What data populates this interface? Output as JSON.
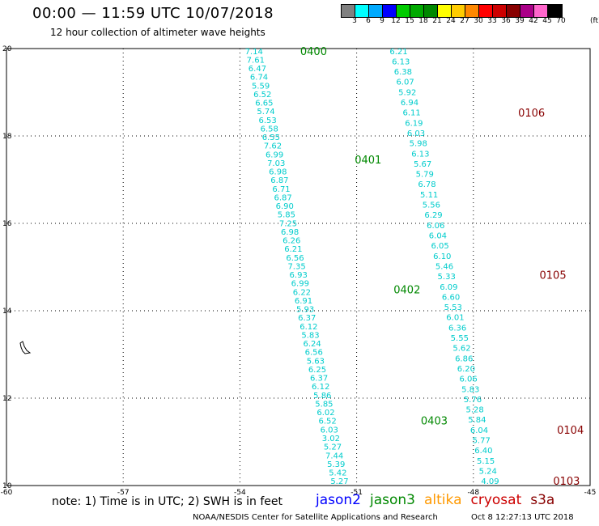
{
  "header": {
    "title": "00:00 — 11:59 UTC 10/07/2018",
    "subtitle": "12 hour collection of altimeter wave heights"
  },
  "color_scale": {
    "colors": [
      "#808080",
      "#00ffff",
      "#00aaff",
      "#0000ff",
      "#00cc00",
      "#00aa00",
      "#008800",
      "#ffff00",
      "#ffcc00",
      "#ff8800",
      "#ff0000",
      "#cc0000",
      "#880000",
      "#aa0088",
      "#ff66cc",
      "#000000"
    ],
    "labels": [
      "3",
      "6",
      "9",
      "12",
      "15",
      "18",
      "21",
      "24",
      "27",
      "30",
      "33",
      "36",
      "39",
      "42",
      "45",
      "70"
    ],
    "unit": "(ft)"
  },
  "map": {
    "lon_ticks": [
      "-60",
      "-57",
      "-54",
      "-51",
      "-48",
      "-45"
    ],
    "lat_ticks": [
      "20",
      "18",
      "16",
      "14",
      "12",
      "10"
    ],
    "track_colors": {
      "swh": "#00cccc",
      "pass_jason3": "#008800",
      "pass_cryosat": "#880000"
    },
    "tracks": [
      {
        "name": "jason3-track-west",
        "values": [
          "7.14",
          "7.61",
          "6.47",
          "6.74",
          "5.59",
          "6.52",
          "6.65",
          "5.74",
          "6.53",
          "6.58",
          "6.55",
          "7.62",
          "6.99",
          "7.03",
          "6.98",
          "6.87",
          "6.71",
          "6.87",
          "6.90",
          "5.85",
          "7.25",
          "6.98",
          "6.26",
          "6.21",
          "6.56",
          "7.35",
          "6.93",
          "6.99",
          "6.22",
          "6.91",
          "5.93",
          "6.37",
          "6.12",
          "5.83",
          "6.24",
          "6.56",
          "5.63",
          "6.25",
          "6.37",
          "6.12",
          "5.86",
          "5.85",
          "6.02",
          "6.52",
          "6.03",
          "3.02",
          "5.27",
          "7.44",
          "5.39",
          "5.42",
          "5.27"
        ]
      },
      {
        "name": "cryosat-track-east",
        "values": [
          "6.21",
          "6.13",
          "6.38",
          "6.07",
          "5.92",
          "6.94",
          "6.11",
          "6.19",
          "6.03",
          "5.98",
          "6.13",
          "5.67",
          "5.79",
          "6.78",
          "5.11",
          "5.56",
          "6.29",
          "6.06",
          "6.04",
          "6.05",
          "6.10",
          "5.46",
          "5.33",
          "6.09",
          "6.60",
          "5.53",
          "6.01",
          "6.36",
          "5.55",
          "5.62",
          "6.86",
          "6.20",
          "6.06",
          "5.83",
          "5.76",
          "5.28",
          "5.84",
          "6.04",
          "5.77",
          "6.40",
          "5.15",
          "5.24",
          "4.09"
        ]
      }
    ],
    "pass_labels": [
      {
        "text": "0400",
        "sat": "jason3"
      },
      {
        "text": "0401",
        "sat": "jason3"
      },
      {
        "text": "0402",
        "sat": "jason3"
      },
      {
        "text": "0403",
        "sat": "jason3"
      },
      {
        "text": "0106",
        "sat": "cryosat"
      },
      {
        "text": "0105",
        "sat": "cryosat"
      },
      {
        "text": "0104",
        "sat": "cryosat"
      },
      {
        "text": "0103",
        "sat": "cryosat"
      }
    ]
  },
  "footer": {
    "note": "note: 1) Time is in UTC; 2) SWH is in feet",
    "satellites": [
      {
        "name": "jason2",
        "color": "#0000ff"
      },
      {
        "name": "jason3",
        "color": "#008800"
      },
      {
        "name": "altika",
        "color": "#ff9900"
      },
      {
        "name": "cryosat",
        "color": "#cc0000"
      },
      {
        "name": "s3a",
        "color": "#880000"
      }
    ],
    "credit": "NOAA/NESDIS Center for Satellite Applications and Research",
    "timestamp": "Oct  8 12:27:13 UTC 2018"
  }
}
